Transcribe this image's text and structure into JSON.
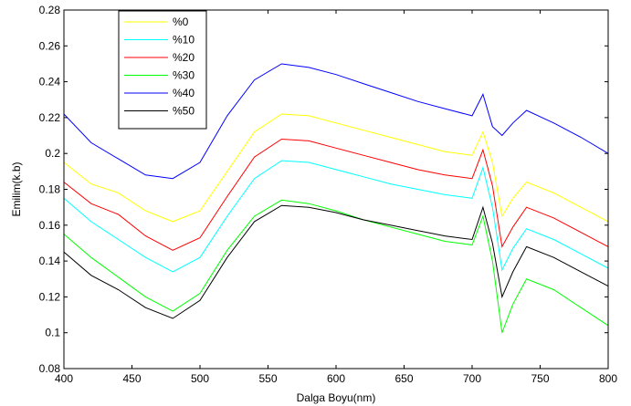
{
  "chart_data": {
    "type": "line",
    "title": "",
    "xlabel": "Dalga Boyu(nm)",
    "ylabel": "Emilim(k.b)",
    "xlim": [
      400,
      800
    ],
    "ylim": [
      0.08,
      0.28
    ],
    "xticks": [
      400,
      450,
      500,
      550,
      600,
      650,
      700,
      750,
      800
    ],
    "xtick_labels": [
      "400",
      "450",
      "500",
      "550",
      "600",
      "650",
      "700",
      "750",
      "800"
    ],
    "yticks": [
      0.08,
      0.1,
      0.12,
      0.14,
      0.16,
      0.18,
      0.2,
      0.22,
      0.24,
      0.26,
      0.28
    ],
    "ytick_labels": [
      "0.08",
      "0.1",
      "0.12",
      "0.14",
      "0.16",
      "0.18",
      "0.2",
      "0.22",
      "0.24",
      "0.26",
      "0.28"
    ],
    "grid": false,
    "legend_position": "top-left",
    "x": [
      400,
      420,
      440,
      460,
      480,
      500,
      520,
      540,
      560,
      580,
      600,
      620,
      640,
      660,
      680,
      700,
      708,
      715,
      722,
      730,
      740,
      760,
      780,
      800
    ],
    "series": [
      {
        "name": "%0",
        "color": "#ffff00",
        "values": [
          0.195,
          0.183,
          0.178,
          0.168,
          0.162,
          0.168,
          0.19,
          0.212,
          0.222,
          0.221,
          0.217,
          0.213,
          0.209,
          0.205,
          0.201,
          0.199,
          0.212,
          0.195,
          0.165,
          0.175,
          0.184,
          0.178,
          0.17,
          0.162
        ]
      },
      {
        "name": "%10",
        "color": "#00ffff",
        "values": [
          0.175,
          0.162,
          0.152,
          0.142,
          0.134,
          0.142,
          0.165,
          0.186,
          0.196,
          0.195,
          0.191,
          0.187,
          0.183,
          0.18,
          0.177,
          0.175,
          0.192,
          0.17,
          0.135,
          0.147,
          0.158,
          0.152,
          0.144,
          0.136
        ]
      },
      {
        "name": "%20",
        "color": "#ff0000",
        "values": [
          0.184,
          0.172,
          0.166,
          0.154,
          0.146,
          0.153,
          0.176,
          0.198,
          0.208,
          0.207,
          0.203,
          0.199,
          0.195,
          0.191,
          0.188,
          0.186,
          0.202,
          0.182,
          0.148,
          0.159,
          0.17,
          0.164,
          0.156,
          0.148
        ]
      },
      {
        "name": "%30",
        "color": "#00ff00",
        "values": [
          0.155,
          0.142,
          0.131,
          0.12,
          0.112,
          0.122,
          0.146,
          0.165,
          0.174,
          0.172,
          0.168,
          0.163,
          0.159,
          0.155,
          0.151,
          0.149,
          0.165,
          0.14,
          0.1,
          0.116,
          0.13,
          0.124,
          0.114,
          0.104
        ]
      },
      {
        "name": "%40",
        "color": "#0000ff",
        "values": [
          0.222,
          0.206,
          0.197,
          0.188,
          0.186,
          0.195,
          0.221,
          0.241,
          0.25,
          0.248,
          0.244,
          0.239,
          0.234,
          0.229,
          0.225,
          0.221,
          0.233,
          0.215,
          0.21,
          0.217,
          0.224,
          0.217,
          0.209,
          0.2
        ]
      },
      {
        "name": "%50",
        "color": "#000000",
        "values": [
          0.145,
          0.132,
          0.124,
          0.114,
          0.108,
          0.118,
          0.142,
          0.162,
          0.171,
          0.17,
          0.167,
          0.163,
          0.16,
          0.157,
          0.154,
          0.152,
          0.17,
          0.15,
          0.12,
          0.134,
          0.148,
          0.142,
          0.134,
          0.126
        ]
      }
    ]
  }
}
